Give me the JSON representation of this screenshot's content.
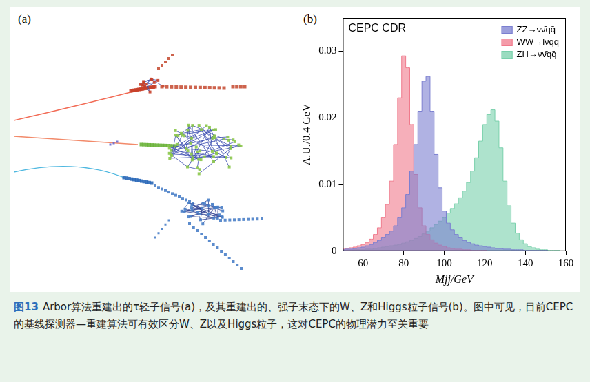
{
  "chart_data": {
    "type": "line",
    "title": "CEPC CDR",
    "x_label": "Mjj/GeV",
    "y_label": "A.U./0.4 GeV",
    "line_style": "step",
    "x": [
      50,
      52,
      54,
      56,
      58,
      60,
      62,
      64,
      66,
      68,
      70,
      72,
      74,
      76,
      78,
      80,
      82,
      84,
      86,
      88,
      90,
      92,
      94,
      96,
      98,
      100,
      102,
      104,
      106,
      108,
      110,
      112,
      114,
      116,
      118,
      120,
      122,
      124,
      126,
      128,
      130,
      132,
      134,
      136,
      138,
      140,
      142,
      144,
      146,
      148,
      150,
      152,
      154,
      156,
      158,
      160
    ],
    "series": [
      {
        "name": "ZZ→νν̄qq̄",
        "color": "#7b7fd0",
        "values": [
          0.0002,
          0.0003,
          0.0003,
          0.0004,
          0.0005,
          0.0006,
          0.0008,
          0.001,
          0.0013,
          0.0016,
          0.002,
          0.0025,
          0.003,
          0.0038,
          0.005,
          0.0065,
          0.0085,
          0.012,
          0.016,
          0.021,
          0.0255,
          0.0262,
          0.021,
          0.0145,
          0.0095,
          0.006,
          0.0042,
          0.0032,
          0.0025,
          0.002,
          0.0016,
          0.0013,
          0.0011,
          0.0009,
          0.0008,
          0.0007,
          0.0006,
          0.0005,
          0.0004,
          0.0004,
          0.0003,
          0.0003,
          0.0002,
          0.0002,
          0.0002,
          0.0001,
          0.0001,
          0.0001,
          0.0001,
          0.0001,
          0.0001,
          0,
          0,
          0,
          0,
          0
        ]
      },
      {
        "name": "WW→lνqq̄",
        "color": "#f07a8c",
        "values": [
          0.0003,
          0.0004,
          0.0005,
          0.0006,
          0.0008,
          0.001,
          0.0013,
          0.0018,
          0.0025,
          0.0035,
          0.005,
          0.007,
          0.0105,
          0.016,
          0.023,
          0.0293,
          0.0275,
          0.019,
          0.0115,
          0.0065,
          0.0038,
          0.0025,
          0.0017,
          0.0012,
          0.0009,
          0.0007,
          0.0005,
          0.0004,
          0.0003,
          0.0003,
          0.0002,
          0.0002,
          0.0001,
          0.0001,
          0.0001,
          0.0001,
          0,
          0,
          0,
          0,
          0,
          0,
          0,
          0,
          0,
          0,
          0,
          0,
          0,
          0,
          0,
          0,
          0,
          0,
          0,
          0
        ]
      },
      {
        "name": "ZH→νν̄qq̄",
        "color": "#78d0ab",
        "values": [
          0.0001,
          0.0001,
          0.0001,
          0.0002,
          0.0002,
          0.0002,
          0.0003,
          0.0003,
          0.0004,
          0.0005,
          0.0006,
          0.0007,
          0.0008,
          0.0009,
          0.001,
          0.0012,
          0.0014,
          0.0016,
          0.0019,
          0.0022,
          0.0026,
          0.003,
          0.0035,
          0.004,
          0.0045,
          0.005,
          0.0057,
          0.0064,
          0.0071,
          0.008,
          0.009,
          0.0103,
          0.012,
          0.014,
          0.0165,
          0.019,
          0.0205,
          0.0212,
          0.0195,
          0.0155,
          0.0105,
          0.0068,
          0.0042,
          0.0027,
          0.0017,
          0.0011,
          0.0007,
          0.0005,
          0.0003,
          0.0002,
          0.0002,
          0.0001,
          0.0001,
          0.0001,
          0,
          0
        ]
      }
    ],
    "xlim": [
      50,
      160
    ],
    "xticks": [
      60,
      80,
      100,
      120,
      140,
      160
    ],
    "ylim": [
      0,
      0.035
    ],
    "yticks": [
      0,
      0.01,
      0.02,
      0.03
    ],
    "grid": false,
    "legend": "top right"
  },
  "figure": {
    "panel_labels": [
      "(a)",
      "(b)"
    ],
    "caption_label": "图13",
    "caption": "Arbor算法重建出的τ轻子信号(a)，及其重建出的、强子末态下的W、Z和Higgs粒子信号(b)。图中可见，目前CEPC的基线探测器—重建算法可有效区分W、Z以及Higgs粒子，这对CEPC的物理潜力至关重要"
  }
}
